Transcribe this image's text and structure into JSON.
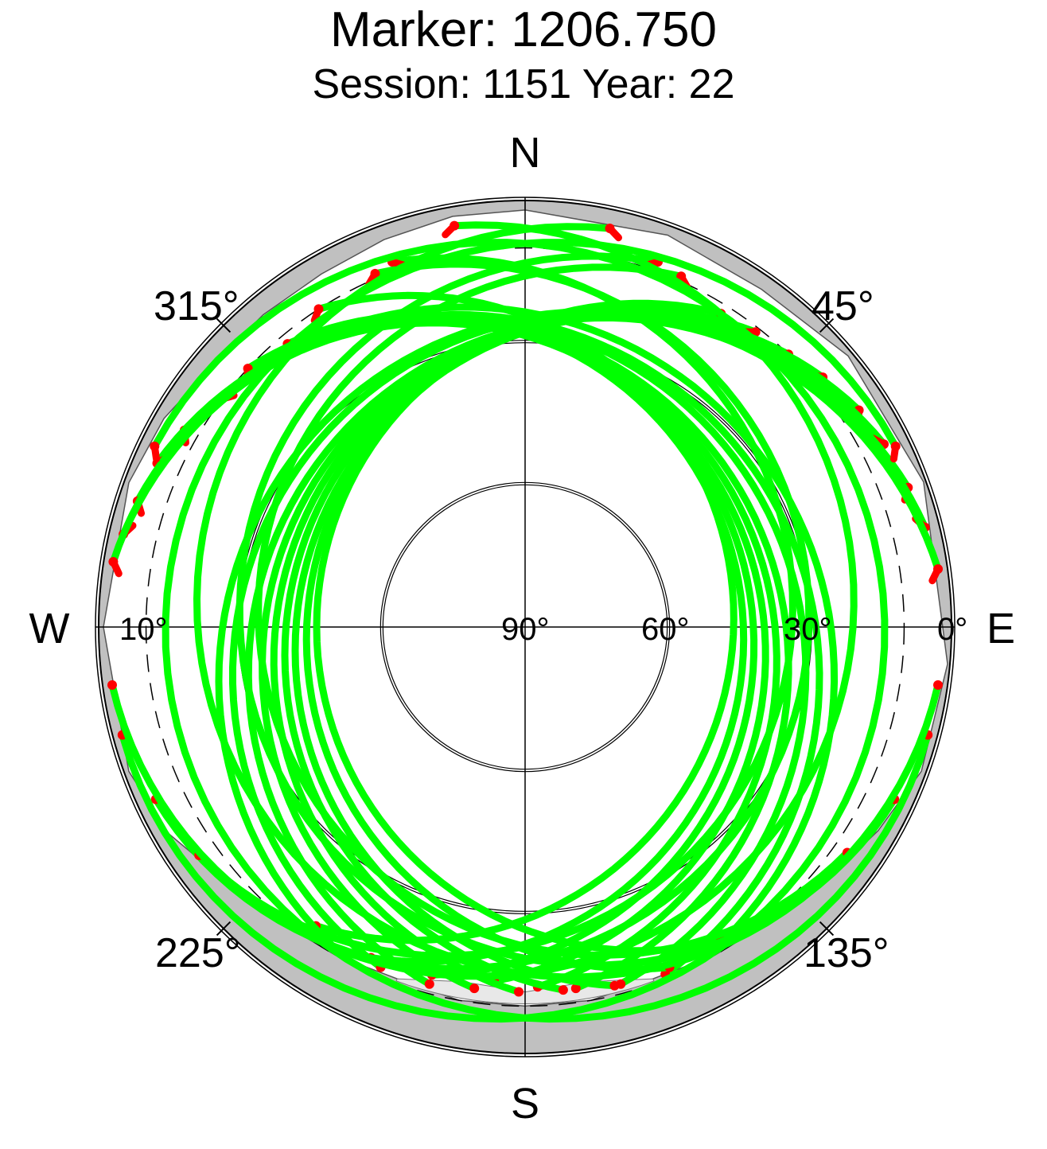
{
  "title": "Marker: 1206.750",
  "subtitle": "Session: 1151 Year: 22",
  "chart_data": {
    "type": "polar-skyplot",
    "title": "Marker: 1206.750",
    "subtitle": "Session: 1151 Year: 22",
    "compass_labels": {
      "north": "N",
      "south": "S",
      "east": "E",
      "west": "W"
    },
    "azimuth_labels": [
      "45°",
      "135°",
      "225°",
      "315°"
    ],
    "elevation_labels": [
      "0°",
      "30°",
      "60°",
      "90°",
      "10°"
    ],
    "elevation_rings_deg": [
      0,
      30,
      60
    ],
    "elevation_mask_deg": 10,
    "colors": {
      "track": "#00ff00",
      "low_point": "#ff0000",
      "obstruction": "#c0c0c0",
      "obstruction_light": "#e8e8e8",
      "grid": "#000000"
    },
    "obstruction_profile": [
      {
        "az": 0,
        "el": 2
      },
      {
        "az": 20,
        "el": 2
      },
      {
        "az": 35,
        "el": 3
      },
      {
        "az": 50,
        "el": 1
      },
      {
        "az": 70,
        "el": 0.5
      },
      {
        "az": 95,
        "el": 0.5
      },
      {
        "az": 110,
        "el": 1
      },
      {
        "az": 120,
        "el": 4
      },
      {
        "az": 130,
        "el": 7
      },
      {
        "az": 140,
        "el": 9
      },
      {
        "az": 150,
        "el": 10
      },
      {
        "az": 160,
        "el": 11
      },
      {
        "az": 170,
        "el": 10
      },
      {
        "az": 180,
        "el": 10
      },
      {
        "az": 190,
        "el": 10
      },
      {
        "az": 200,
        "el": 11
      },
      {
        "az": 210,
        "el": 10
      },
      {
        "az": 220,
        "el": 9
      },
      {
        "az": 230,
        "el": 7
      },
      {
        "az": 240,
        "el": 3
      },
      {
        "az": 250,
        "el": 1
      },
      {
        "az": 270,
        "el": 1
      },
      {
        "az": 290,
        "el": 1
      },
      {
        "az": 300,
        "el": 2
      },
      {
        "az": 310,
        "el": 4
      },
      {
        "az": 320,
        "el": 4
      },
      {
        "az": 330,
        "el": 4
      },
      {
        "az": 340,
        "el": 3
      },
      {
        "az": 350,
        "el": 2
      },
      {
        "az": 360,
        "el": 2
      }
    ],
    "tracks": [
      {
        "start": {
          "az": 327,
          "el": 10
        },
        "end": {
          "az": 215,
          "el": 13
        },
        "apex_el": 46
      },
      {
        "start": {
          "az": 320,
          "el": 12
        },
        "end": {
          "az": 205,
          "el": 13
        },
        "apex_el": 44
      },
      {
        "start": {
          "az": 313,
          "el": 10
        },
        "end": {
          "az": 195,
          "el": 14
        },
        "apex_el": 42
      },
      {
        "start": {
          "az": 307,
          "el": 10
        },
        "end": {
          "az": 185,
          "el": 15
        },
        "apex_el": 40
      },
      {
        "start": {
          "az": 300,
          "el": 7
        },
        "end": {
          "az": 178,
          "el": 14
        },
        "apex_el": 38
      },
      {
        "start": {
          "az": 294,
          "el": 5
        },
        "end": {
          "az": 172,
          "el": 13
        },
        "apex_el": 36
      },
      {
        "start": {
          "az": 288,
          "el": 4
        },
        "end": {
          "az": 165,
          "el": 12
        },
        "apex_el": 33
      },
      {
        "start": {
          "az": 283,
          "el": 3
        },
        "end": {
          "az": 158,
          "el": 11
        },
        "apex_el": 31
      },
      {
        "start": {
          "az": 279,
          "el": 2
        },
        "end": {
          "az": 150,
          "el": 11
        },
        "apex_el": 28
      },
      {
        "start": {
          "az": 32,
          "el": 12
        },
        "end": {
          "az": 148,
          "el": 12
        },
        "apex_el": 46
      },
      {
        "start": {
          "az": 38,
          "el": 11
        },
        "end": {
          "az": 157,
          "el": 12
        },
        "apex_el": 44
      },
      {
        "start": {
          "az": 44,
          "el": 10
        },
        "end": {
          "az": 166,
          "el": 12
        },
        "apex_el": 42
      },
      {
        "start": {
          "az": 50,
          "el": 8
        },
        "end": {
          "az": 174,
          "el": 13
        },
        "apex_el": 40
      },
      {
        "start": {
          "az": 57,
          "el": 6
        },
        "end": {
          "az": 181,
          "el": 13
        },
        "apex_el": 38
      },
      {
        "start": {
          "az": 63,
          "el": 5
        },
        "end": {
          "az": 188,
          "el": 13
        },
        "apex_el": 36
      },
      {
        "start": {
          "az": 70,
          "el": 4
        },
        "end": {
          "az": 195,
          "el": 12
        },
        "apex_el": 34
      },
      {
        "start": {
          "az": 76,
          "el": 3
        },
        "end": {
          "az": 203,
          "el": 12
        },
        "apex_el": 31
      },
      {
        "start": {
          "az": 82,
          "el": 2
        },
        "end": {
          "az": 210,
          "el": 11
        },
        "apex_el": 29
      },
      {
        "start": {
          "az": 337,
          "el": 9
        },
        "end": {
          "az": 245,
          "el": 4
        },
        "apex_el": 30
      },
      {
        "start": {
          "az": 340,
          "el": 8
        },
        "end": {
          "az": 235,
          "el": 6
        },
        "apex_el": 34
      },
      {
        "start": {
          "az": 20,
          "el": 8
        },
        "end": {
          "az": 115,
          "el": 4
        },
        "apex_el": 30
      },
      {
        "start": {
          "az": 24,
          "el": 9
        },
        "end": {
          "az": 125,
          "el": 7
        },
        "apex_el": 34
      },
      {
        "start": {
          "az": 296,
          "el": 3
        },
        "end": {
          "az": 255,
          "el": 2
        },
        "apex_el": 14
      },
      {
        "start": {
          "az": 64,
          "el": 3
        },
        "end": {
          "az": 105,
          "el": 2
        },
        "apex_el": 14
      },
      {
        "start": {
          "az": 350,
          "el": 4
        },
        "end": {
          "az": 262,
          "el": 2
        },
        "apex_el": 22
      },
      {
        "start": {
          "az": 12,
          "el": 4
        },
        "end": {
          "az": 98,
          "el": 2
        },
        "apex_el": 22
      }
    ]
  }
}
